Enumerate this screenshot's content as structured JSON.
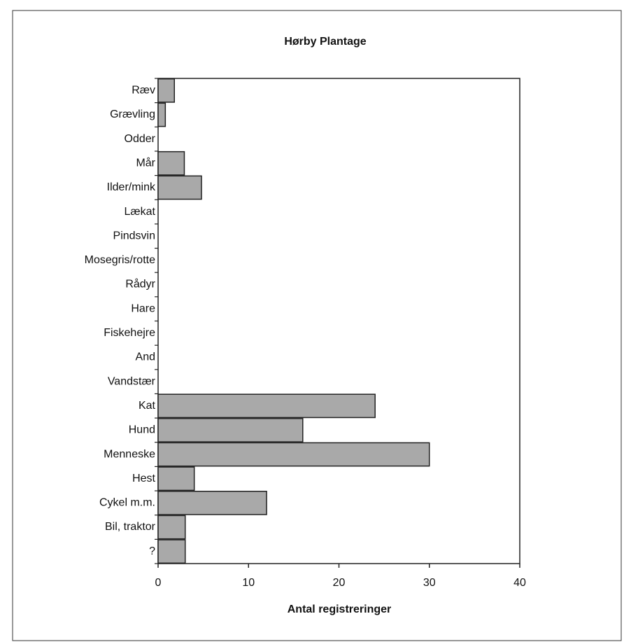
{
  "chart_data": {
    "type": "bar",
    "orientation": "horizontal",
    "title": "Hørby Plantage",
    "xlabel": "Antal registreringer",
    "categories": [
      "Ræv",
      "Grævling",
      "Odder",
      "Mår",
      "Ilder/mink",
      "Lækat",
      "Pindsvin",
      "Mosegris/rotte",
      "Rådyr",
      "Hare",
      "Fiskehejre",
      "And",
      "Vandstær",
      "Kat",
      "Hund",
      "Menneske",
      "Hest",
      "Cykel m.m.",
      "Bil, traktor",
      "?"
    ],
    "values": [
      1.8,
      0.8,
      0,
      2.9,
      4.8,
      0,
      0,
      0,
      0,
      0,
      0,
      0,
      0,
      24,
      16,
      30,
      4,
      12,
      3,
      3
    ],
    "color": "#a9a9a9",
    "xlim": [
      0,
      40
    ],
    "xticks": [
      0,
      10,
      20,
      30,
      40
    ]
  }
}
